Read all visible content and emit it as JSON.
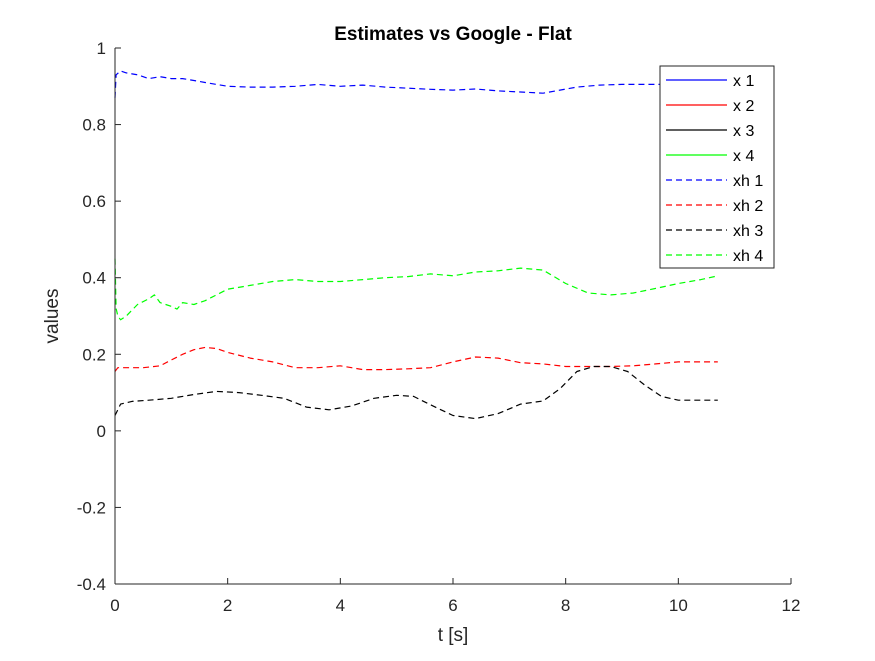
{
  "chart_data": {
    "type": "line",
    "title": "Estimates vs Google - Flat",
    "xlabel": "t [s]",
    "ylabel": "values",
    "xlim": [
      0,
      12
    ],
    "ylim": [
      -0.4,
      1
    ],
    "xticks": [
      0,
      2,
      4,
      6,
      8,
      10,
      12
    ],
    "yticks": [
      -0.4,
      -0.2,
      0,
      0.2,
      0.4,
      0.6,
      0.8,
      1
    ],
    "ytick_labels": [
      "-0.4",
      "-0.2",
      "0",
      "0.2",
      "0.4",
      "0.6",
      "0.8",
      "1"
    ],
    "grid": false,
    "legend_position": "top-right",
    "series": [
      {
        "name": "x 1",
        "color": "#0000ff",
        "style": "solid",
        "x": [],
        "y": []
      },
      {
        "name": "x 2",
        "color": "#ff0000",
        "style": "solid",
        "x": [],
        "y": []
      },
      {
        "name": "x 3",
        "color": "#000000",
        "style": "solid",
        "x": [],
        "y": []
      },
      {
        "name": "x 4",
        "color": "#00ff00",
        "style": "solid",
        "x": [],
        "y": []
      },
      {
        "name": "xh 1",
        "color": "#0000ff",
        "style": "dashed",
        "x": [
          0,
          0.02,
          0.1,
          0.2,
          0.4,
          0.6,
          0.8,
          1.0,
          1.2,
          1.4,
          1.6,
          1.8,
          2.0,
          2.4,
          2.8,
          3.2,
          3.6,
          4.0,
          4.4,
          4.8,
          5.2,
          5.6,
          6.0,
          6.4,
          6.8,
          7.2,
          7.6,
          7.9,
          8.2,
          8.6,
          9.0,
          9.5,
          10.0,
          10.4,
          10.7
        ],
        "y": [
          0.87,
          0.93,
          0.94,
          0.935,
          0.93,
          0.92,
          0.925,
          0.92,
          0.92,
          0.915,
          0.91,
          0.905,
          0.9,
          0.898,
          0.898,
          0.9,
          0.905,
          0.9,
          0.903,
          0.898,
          0.895,
          0.892,
          0.89,
          0.893,
          0.888,
          0.885,
          0.882,
          0.89,
          0.898,
          0.903,
          0.905,
          0.905,
          0.905,
          0.905,
          0.905
        ]
      },
      {
        "name": "xh 2",
        "color": "#ff0000",
        "style": "dashed",
        "x": [
          0,
          0.05,
          0.2,
          0.5,
          0.8,
          1.0,
          1.2,
          1.4,
          1.6,
          1.8,
          2.0,
          2.4,
          2.8,
          3.2,
          3.6,
          4.0,
          4.4,
          4.8,
          5.2,
          5.6,
          6.0,
          6.4,
          6.8,
          7.2,
          7.6,
          8.0,
          8.4,
          8.8,
          9.2,
          9.6,
          10.0,
          10.4,
          10.7
        ],
        "y": [
          0.155,
          0.165,
          0.165,
          0.165,
          0.17,
          0.185,
          0.2,
          0.212,
          0.218,
          0.215,
          0.205,
          0.19,
          0.18,
          0.165,
          0.165,
          0.17,
          0.16,
          0.16,
          0.162,
          0.165,
          0.18,
          0.193,
          0.19,
          0.178,
          0.175,
          0.168,
          0.168,
          0.168,
          0.17,
          0.175,
          0.18,
          0.18,
          0.18
        ]
      },
      {
        "name": "xh 3",
        "color": "#000000",
        "style": "dashed",
        "x": [
          0,
          0.1,
          0.3,
          0.6,
          1.0,
          1.4,
          1.8,
          2.2,
          2.6,
          3.0,
          3.4,
          3.8,
          4.2,
          4.6,
          5.0,
          5.3,
          5.6,
          6.0,
          6.4,
          6.8,
          7.2,
          7.6,
          7.9,
          8.2,
          8.5,
          8.8,
          9.1,
          9.4,
          9.7,
          10.0,
          10.4,
          10.7
        ],
        "y": [
          0.04,
          0.07,
          0.077,
          0.08,
          0.085,
          0.095,
          0.103,
          0.1,
          0.093,
          0.085,
          0.062,
          0.055,
          0.065,
          0.085,
          0.093,
          0.09,
          0.068,
          0.04,
          0.032,
          0.045,
          0.07,
          0.078,
          0.11,
          0.155,
          0.168,
          0.168,
          0.155,
          0.12,
          0.09,
          0.08,
          0.08,
          0.08
        ]
      },
      {
        "name": "xh 4",
        "color": "#00ff00",
        "style": "dashed",
        "x": [
          0,
          0.02,
          0.05,
          0.1,
          0.2,
          0.4,
          0.6,
          0.7,
          0.8,
          0.9,
          1.0,
          1.1,
          1.2,
          1.4,
          1.6,
          1.8,
          2.0,
          2.4,
          2.8,
          3.2,
          3.6,
          4.0,
          4.4,
          4.8,
          5.2,
          5.6,
          6.0,
          6.4,
          6.8,
          7.2,
          7.6,
          8.0,
          8.4,
          8.8,
          9.2,
          9.6,
          10.0,
          10.4,
          10.7
        ],
        "y": [
          0.45,
          0.32,
          0.3,
          0.29,
          0.3,
          0.33,
          0.345,
          0.355,
          0.335,
          0.33,
          0.325,
          0.318,
          0.335,
          0.33,
          0.34,
          0.355,
          0.37,
          0.38,
          0.39,
          0.395,
          0.39,
          0.39,
          0.395,
          0.4,
          0.403,
          0.41,
          0.405,
          0.415,
          0.418,
          0.425,
          0.42,
          0.385,
          0.36,
          0.355,
          0.36,
          0.372,
          0.385,
          0.395,
          0.405
        ]
      }
    ]
  }
}
